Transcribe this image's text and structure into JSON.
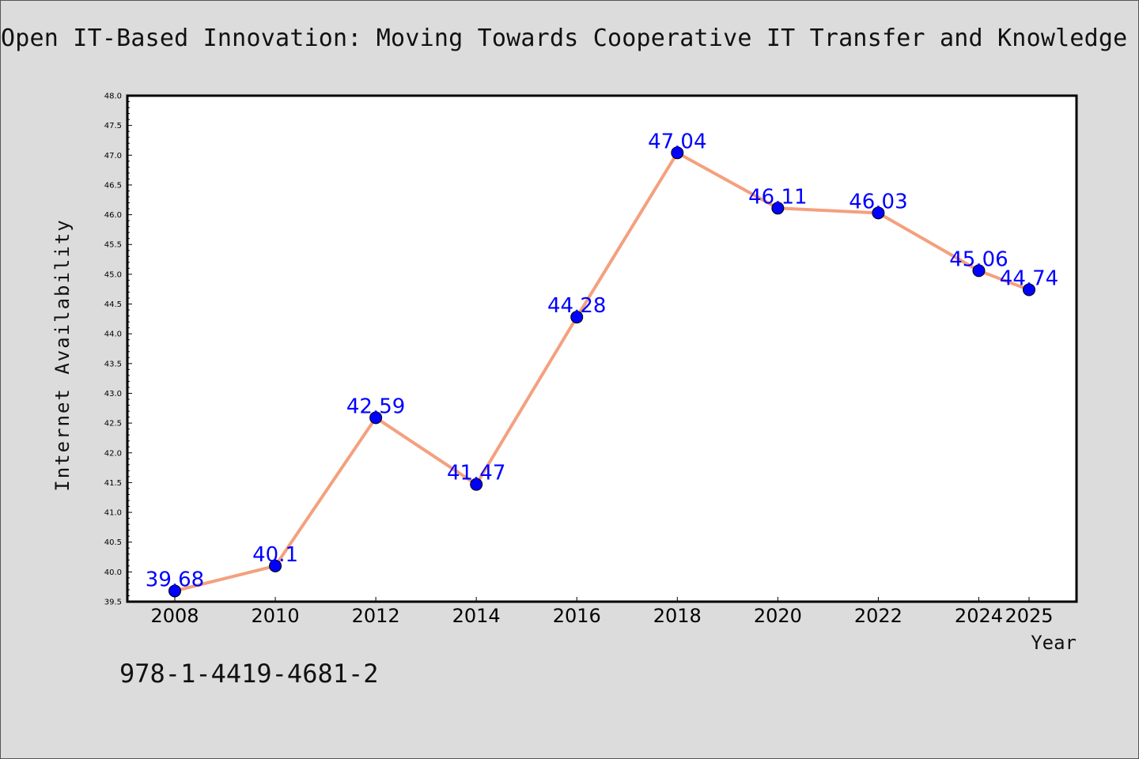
{
  "chart_data": {
    "type": "line",
    "title": "Open IT-Based Innovation: Moving Towards Cooperative IT Transfer and Knowledge D",
    "xlabel": "Year",
    "ylabel": "Internet Availability",
    "categories": [
      "2008",
      "2010",
      "2012",
      "2014",
      "2016",
      "2018",
      "2020",
      "2022",
      "2024",
      "2025"
    ],
    "series": [
      {
        "values": [
          39.68,
          40.1,
          42.59,
          41.47,
          44.28,
          47.04,
          46.11,
          46.03,
          45.06,
          44.74
        ],
        "data_labels": [
          "39.68",
          "40.1",
          "42.59",
          "41.47",
          "44.28",
          "47.04",
          "46.11",
          "46.03",
          "45.06",
          "44.74"
        ]
      }
    ],
    "ylim": [
      39.5,
      48.0
    ],
    "yticks": [
      "39.5",
      "40.0",
      "40.5",
      "41.0",
      "41.5",
      "42.0",
      "42.5",
      "43.0",
      "43.5",
      "44.0",
      "44.5",
      "45.0",
      "45.5",
      "46.0",
      "46.5",
      "47.0",
      "47.5",
      "48.0"
    ],
    "grid": false,
    "line_color": "#f4a07e",
    "marker_color": "#0000ff",
    "label_color": "#0000ff"
  },
  "footer": {
    "isbn": "978-1-4419-4681-2"
  }
}
